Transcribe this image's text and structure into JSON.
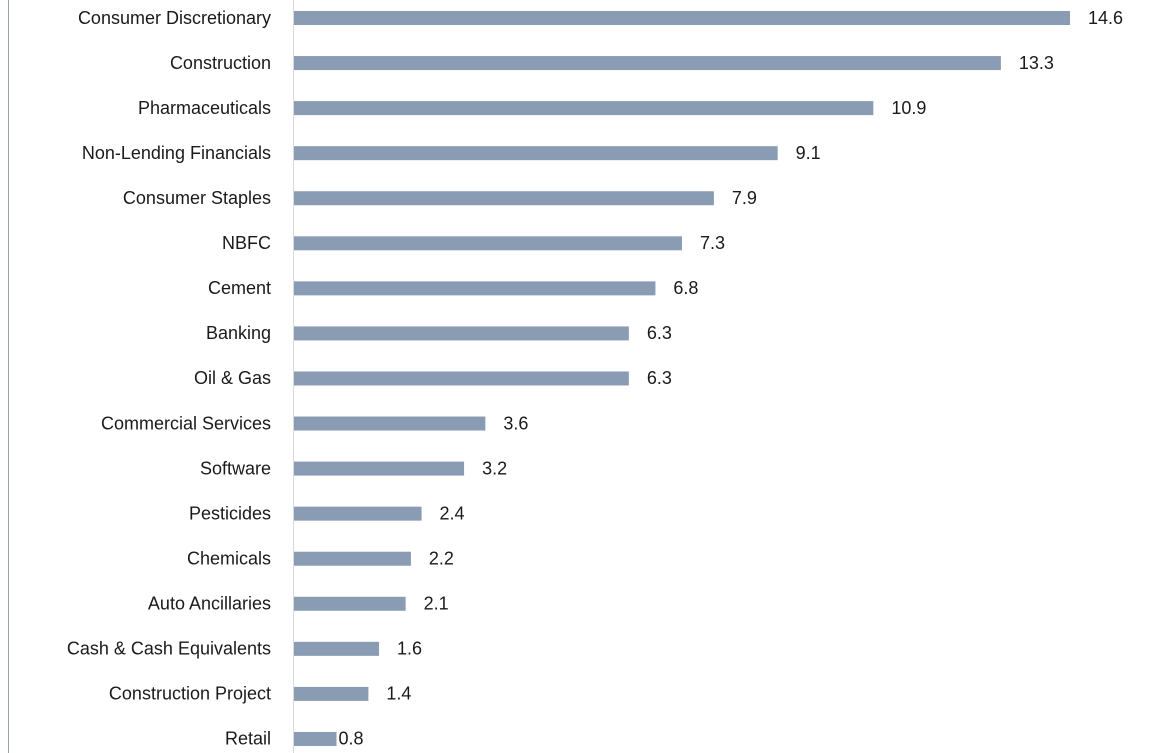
{
  "chart_data": {
    "type": "bar",
    "orientation": "horizontal",
    "color": "#8a9bb4",
    "categories": [
      "Consumer Discretionary",
      "Construction",
      "Pharmaceuticals",
      "Non-Lending Financials",
      "Consumer Staples",
      "NBFC",
      "Cement",
      "Banking",
      "Oil & Gas",
      "Commercial Services",
      "Software",
      "Pesticides",
      "Chemicals",
      "Auto Ancillaries",
      "Cash & Cash Equivalents",
      "Construction Project",
      "Retail"
    ],
    "values": [
      14.6,
      13.3,
      10.9,
      9.1,
      7.9,
      7.3,
      6.8,
      6.3,
      6.3,
      3.6,
      3.2,
      2.4,
      2.2,
      2.1,
      1.6,
      1.4,
      0.8
    ]
  }
}
